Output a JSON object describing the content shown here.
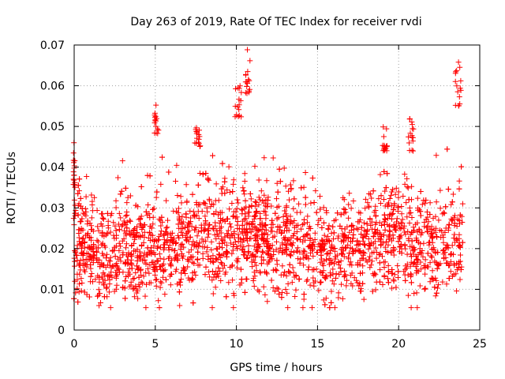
{
  "chart_data": {
    "type": "scatter",
    "title": "Day 263 of 2019, Rate Of TEC Index for receiver rvdi",
    "xlabel": "GPS time / hours",
    "ylabel": "ROTI / TECUs",
    "xlim": [
      0,
      25
    ],
    "ylim": [
      0,
      0.07
    ],
    "xticks": [
      0,
      5,
      10,
      15,
      20,
      25
    ],
    "xtick_labels": [
      "0",
      "5",
      "10",
      "15",
      "20",
      "25"
    ],
    "yticks": [
      0,
      0.01,
      0.02,
      0.03,
      0.04,
      0.05,
      0.06,
      0.07
    ],
    "ytick_labels": [
      "0",
      "0.01",
      "0.02",
      "0.03",
      "0.04",
      "0.05",
      "0.06",
      "0.07"
    ],
    "grid": true,
    "marker": "+",
    "color": "#ff0000",
    "point_count": 2600,
    "baseline_profile": {
      "x": [
        0,
        1,
        2,
        3,
        4,
        5,
        6,
        7,
        8,
        9,
        10,
        11,
        12,
        13,
        14,
        15,
        16,
        17,
        18,
        19,
        20,
        21,
        22,
        23,
        24
      ],
      "y": [
        0.021,
        0.02,
        0.018,
        0.02,
        0.021,
        0.019,
        0.022,
        0.022,
        0.024,
        0.023,
        0.023,
        0.023,
        0.022,
        0.022,
        0.021,
        0.021,
        0.019,
        0.02,
        0.022,
        0.023,
        0.023,
        0.021,
        0.02,
        0.021,
        0.022
      ],
      "spread": 0.0065
    },
    "spikes": [
      {
        "x": [
          -0.05,
          0.05
        ],
        "y": [
          0.035,
          0.046
        ]
      },
      {
        "x": [
          4.95,
          5.2
        ],
        "y": [
          0.048,
          0.056
        ]
      },
      {
        "x": [
          7.4,
          7.8
        ],
        "y": [
          0.045,
          0.05
        ]
      },
      {
        "x": [
          9.9,
          10.3
        ],
        "y": [
          0.052,
          0.061
        ]
      },
      {
        "x": [
          10.5,
          10.85
        ],
        "y": [
          0.058,
          0.069
        ]
      },
      {
        "x": [
          19.0,
          19.3
        ],
        "y": [
          0.044,
          0.05
        ]
      },
      {
        "x": [
          20.6,
          20.95
        ],
        "y": [
          0.044,
          0.052
        ]
      },
      {
        "x": [
          23.5,
          23.85
        ],
        "y": [
          0.055,
          0.066
        ]
      }
    ]
  }
}
